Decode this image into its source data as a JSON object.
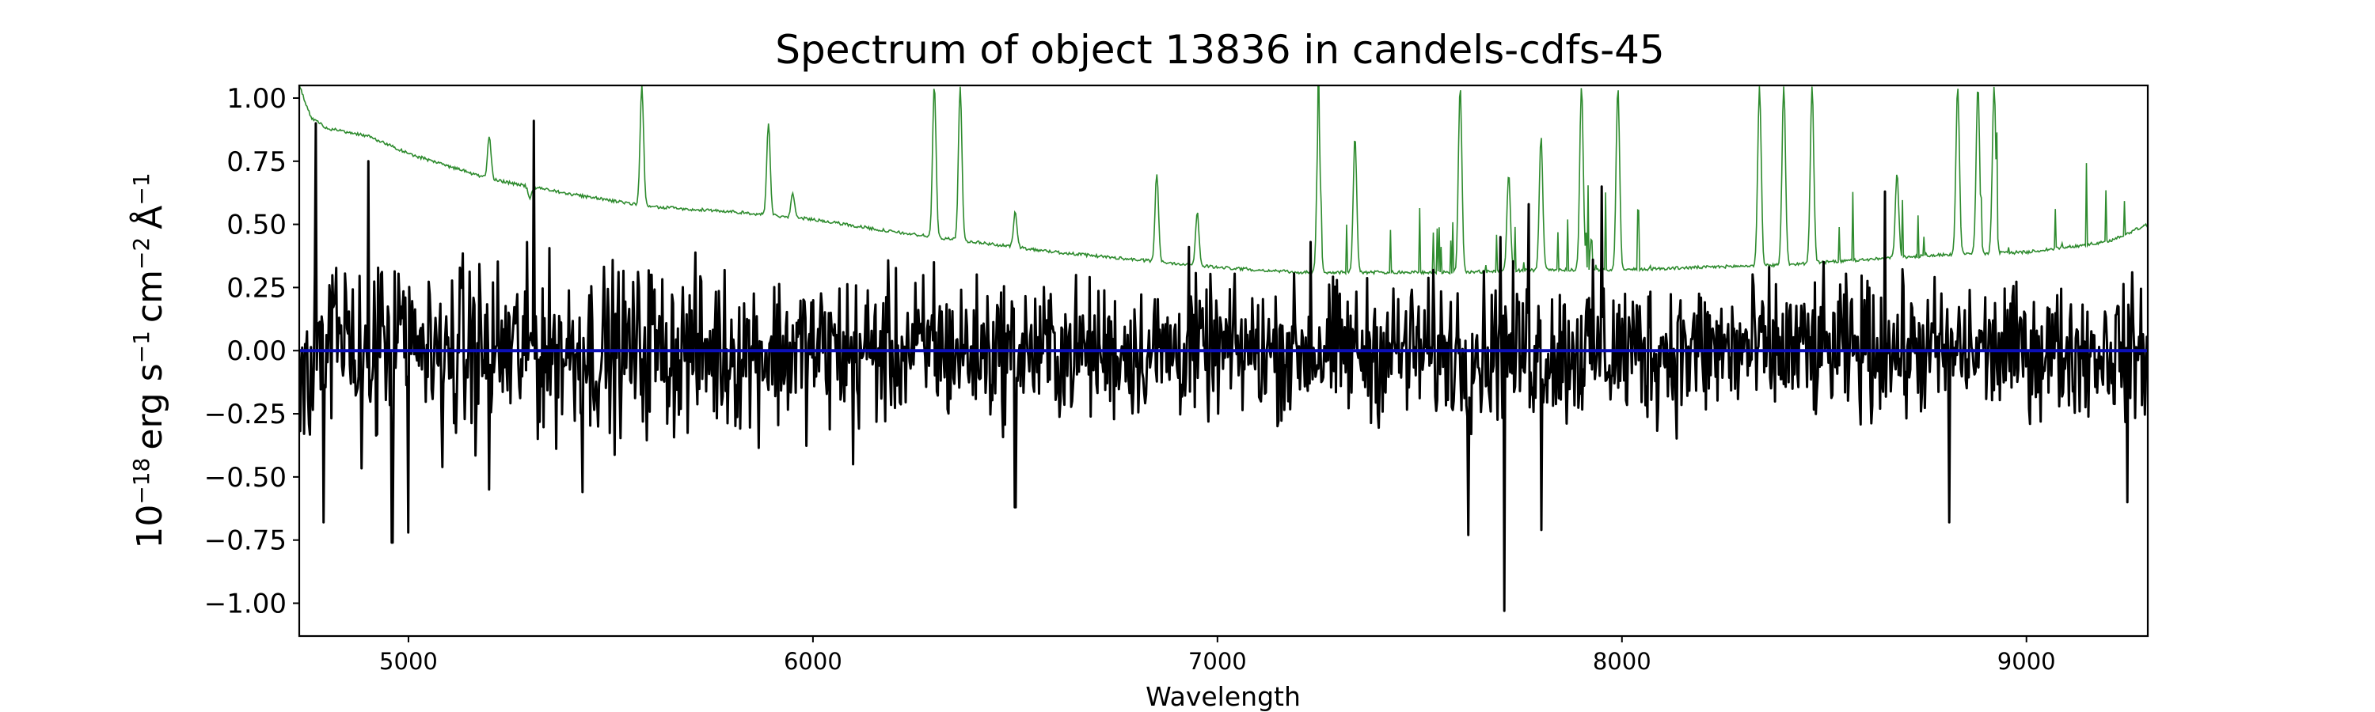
{
  "chart_data": {
    "type": "line",
    "title": "Spectrum of object 13836 in candels-cdfs-45",
    "xlabel": "Wavelength",
    "ylabel": {
      "base": "10",
      "exp": "−18",
      "unit1": "erg s",
      "unit1_exp": "−1",
      "unit2": "cm",
      "unit2_exp": "−2",
      "unit3": "Å",
      "unit3_exp": "−1"
    },
    "xlim": [
      4730,
      9300
    ],
    "ylim": [
      -1.13,
      1.05
    ],
    "xticks": [
      5000,
      6000,
      7000,
      8000,
      9000
    ],
    "xtick_labels": [
      "5000",
      "6000",
      "7000",
      "8000",
      "9000"
    ],
    "yticks": [
      1.0,
      0.75,
      0.5,
      0.25,
      0.0,
      -0.25,
      -0.5,
      -0.75,
      -1.0
    ],
    "ytick_labels": [
      "1.00",
      "0.75",
      "0.50",
      "0.25",
      "0.00",
      "−0.25",
      "−0.50",
      "−0.75",
      "−1.00"
    ],
    "grid": false,
    "legend": "none",
    "series": [
      {
        "role": "flux",
        "color": "#000000",
        "noise_anchors": [
          [
            4730,
            0.42
          ],
          [
            5000,
            0.4
          ],
          [
            5500,
            0.36
          ],
          [
            6000,
            0.33
          ],
          [
            6500,
            0.3
          ],
          [
            7000,
            0.28
          ],
          [
            7500,
            0.3
          ],
          [
            8000,
            0.32
          ],
          [
            8500,
            0.3
          ],
          [
            9000,
            0.27
          ],
          [
            9300,
            0.28
          ]
        ],
        "features": [
          [
            4770,
            0.9
          ],
          [
            4790,
            -0.68
          ],
          [
            4900,
            0.75
          ],
          [
            4960,
            -0.76
          ],
          [
            5000,
            -0.72
          ],
          [
            5200,
            -0.55
          ],
          [
            5310,
            0.91
          ],
          [
            5430,
            -0.56
          ],
          [
            5600,
            0.3
          ],
          [
            6100,
            -0.45
          ],
          [
            6300,
            0.35
          ],
          [
            6500,
            -0.62
          ],
          [
            6930,
            0.41
          ],
          [
            7230,
            0.43
          ],
          [
            7620,
            -0.73
          ],
          [
            7700,
            0.45
          ],
          [
            7710,
            -1.03
          ],
          [
            7770,
            0.58
          ],
          [
            7800,
            -0.71
          ],
          [
            7950,
            0.65
          ],
          [
            8600,
            0.2
          ],
          [
            8650,
            0.63
          ],
          [
            8810,
            -0.68
          ],
          [
            9250,
            -0.6
          ]
        ]
      },
      {
        "role": "error",
        "color": "#2e8b2e",
        "continuum": [
          [
            4730,
            1.05
          ],
          [
            4760,
            0.92
          ],
          [
            4800,
            0.88
          ],
          [
            4900,
            0.85
          ],
          [
            5000,
            0.78
          ],
          [
            5200,
            0.68
          ],
          [
            5400,
            0.62
          ],
          [
            5600,
            0.57
          ],
          [
            5800,
            0.55
          ],
          [
            6000,
            0.52
          ],
          [
            6200,
            0.47
          ],
          [
            6400,
            0.43
          ],
          [
            6600,
            0.39
          ],
          [
            6800,
            0.36
          ],
          [
            7000,
            0.33
          ],
          [
            7200,
            0.31
          ],
          [
            7400,
            0.31
          ],
          [
            7600,
            0.31
          ],
          [
            7800,
            0.32
          ],
          [
            8000,
            0.32
          ],
          [
            8200,
            0.33
          ],
          [
            8400,
            0.34
          ],
          [
            8600,
            0.36
          ],
          [
            8800,
            0.38
          ],
          [
            9000,
            0.39
          ],
          [
            9200,
            0.43
          ],
          [
            9300,
            0.5
          ]
        ],
        "lines": [
          [
            5200,
            0.85
          ],
          [
            5300,
            0.6
          ],
          [
            5577,
            1.05
          ],
          [
            5890,
            0.9
          ],
          [
            5950,
            0.62
          ],
          [
            6300,
            1.05
          ],
          [
            6364,
            1.05
          ],
          [
            6500,
            0.55
          ],
          [
            6850,
            0.7
          ],
          [
            6950,
            0.55
          ],
          [
            7250,
            0.95
          ],
          [
            7340,
            0.85
          ],
          [
            7600,
            1.05
          ],
          [
            7720,
            0.7
          ],
          [
            7800,
            0.85
          ],
          [
            7900,
            1.05
          ],
          [
            7990,
            1.05
          ],
          [
            8340,
            1.05
          ],
          [
            8400,
            1.05
          ],
          [
            8470,
            1.05
          ],
          [
            8680,
            0.7
          ],
          [
            8830,
            1.05
          ],
          [
            8880,
            1.05
          ],
          [
            8920,
            1.05
          ]
        ]
      },
      {
        "role": "model",
        "color": "#0b0fb8",
        "x": [
          4730,
          9300
        ],
        "y": [
          0.0,
          0.0
        ]
      }
    ]
  }
}
